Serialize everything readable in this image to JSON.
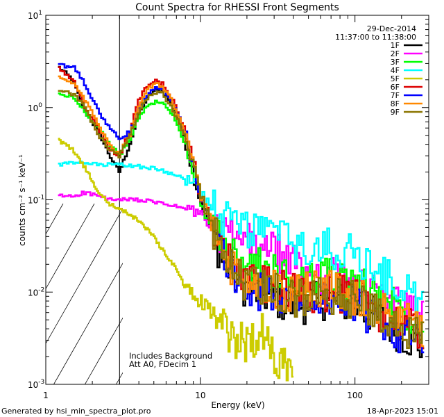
{
  "chart_data": {
    "type": "line",
    "title": "Count Spectra for RHESSI Front Segments",
    "xlabel": "Energy (keV)",
    "ylabel": "counts cm⁻² s⁻¹ keV⁻¹",
    "xscale": "log",
    "yscale": "log",
    "xlim": [
      1,
      300
    ],
    "ylim": [
      0.001,
      10
    ],
    "xticks": [
      {
        "value": 1,
        "label": "1"
      },
      {
        "value": 10,
        "label": "10"
      },
      {
        "value": 100,
        "label": "100"
      }
    ],
    "yticks": [
      {
        "value": 0.001,
        "base": "10",
        "exp": "-3"
      },
      {
        "value": 0.01,
        "base": "10",
        "exp": "-2"
      },
      {
        "value": 0.1,
        "base": "10",
        "exp": "-1"
      },
      {
        "value": 1,
        "base": "10",
        "exp": "0"
      },
      {
        "value": 10,
        "base": "10",
        "exp": "1"
      }
    ],
    "date": "29-Dec-2014",
    "time_range": "11:37:00 to 11:38:00",
    "annotations": [
      "Includes Background",
      "Att A0, FDecim 1"
    ],
    "hatched_region": [
      1,
      3
    ],
    "series": [
      {
        "name": "1F",
        "color": "#000000",
        "points": [
          [
            1.2,
            2.8
          ],
          [
            1.5,
            2.0
          ],
          [
            1.8,
            0.9
          ],
          [
            2.2,
            0.55
          ],
          [
            2.6,
            0.3
          ],
          [
            3.0,
            0.2
          ],
          [
            3.5,
            0.4
          ],
          [
            4.0,
            0.85
          ],
          [
            4.6,
            1.3
          ],
          [
            5.1,
            1.55
          ],
          [
            5.7,
            1.5
          ],
          [
            6.3,
            1.2
          ],
          [
            7.0,
            0.85
          ],
          [
            8.0,
            0.45
          ],
          [
            9.0,
            0.2
          ],
          [
            10.0,
            0.1
          ],
          [
            12.0,
            0.045
          ],
          [
            14.0,
            0.022
          ],
          [
            17.0,
            0.014
          ],
          [
            20.0,
            0.011
          ],
          [
            25.0,
            0.0095
          ],
          [
            30.0,
            0.0085
          ],
          [
            40.0,
            0.007
          ],
          [
            50.0,
            0.0075
          ],
          [
            70.0,
            0.0085
          ],
          [
            100.0,
            0.007
          ],
          [
            150.0,
            0.005
          ],
          [
            200.0,
            0.0035
          ],
          [
            280.0,
            0.0025
          ]
        ]
      },
      {
        "name": "2F",
        "color": "#ff00ff",
        "points": [
          [
            1.2,
            0.11
          ],
          [
            1.5,
            0.11
          ],
          [
            1.8,
            0.12
          ],
          [
            2.2,
            0.11
          ],
          [
            2.6,
            0.1
          ],
          [
            3.0,
            0.1
          ],
          [
            4.0,
            0.1
          ],
          [
            6.0,
            0.09
          ],
          [
            8.0,
            0.08
          ],
          [
            10.0,
            0.07
          ],
          [
            12.0,
            0.05
          ],
          [
            15.0,
            0.04
          ],
          [
            20.0,
            0.035
          ],
          [
            25.0,
            0.032
          ],
          [
            30.0,
            0.028
          ],
          [
            40.0,
            0.02
          ],
          [
            50.0,
            0.017
          ],
          [
            70.0,
            0.015
          ],
          [
            100.0,
            0.012
          ],
          [
            150.0,
            0.009
          ],
          [
            200.0,
            0.007
          ],
          [
            280.0,
            0.005
          ]
        ]
      },
      {
        "name": "3F",
        "color": "#00ff00",
        "points": [
          [
            1.2,
            1.4
          ],
          [
            1.5,
            1.3
          ],
          [
            1.8,
            0.9
          ],
          [
            2.2,
            0.6
          ],
          [
            2.6,
            0.4
          ],
          [
            3.0,
            0.3
          ],
          [
            3.5,
            0.45
          ],
          [
            4.0,
            0.8
          ],
          [
            4.6,
            1.05
          ],
          [
            5.1,
            1.15
          ],
          [
            5.7,
            1.1
          ],
          [
            6.3,
            0.95
          ],
          [
            7.0,
            0.7
          ],
          [
            8.0,
            0.4
          ],
          [
            9.0,
            0.2
          ],
          [
            10.0,
            0.1
          ],
          [
            12.0,
            0.05
          ],
          [
            14.0,
            0.028
          ],
          [
            17.0,
            0.022
          ],
          [
            20.0,
            0.02
          ],
          [
            25.0,
            0.018
          ],
          [
            30.0,
            0.016
          ],
          [
            40.0,
            0.013
          ],
          [
            50.0,
            0.014
          ],
          [
            70.0,
            0.015
          ],
          [
            100.0,
            0.012
          ],
          [
            150.0,
            0.009
          ],
          [
            200.0,
            0.0065
          ],
          [
            280.0,
            0.0045
          ]
        ]
      },
      {
        "name": "4F",
        "color": "#00ffff",
        "points": [
          [
            1.2,
            0.24
          ],
          [
            1.5,
            0.25
          ],
          [
            1.8,
            0.25
          ],
          [
            2.2,
            0.24
          ],
          [
            2.6,
            0.24
          ],
          [
            3.0,
            0.24
          ],
          [
            4.0,
            0.23
          ],
          [
            5.0,
            0.22
          ],
          [
            6.0,
            0.2
          ],
          [
            7.0,
            0.19
          ],
          [
            8.0,
            0.17
          ],
          [
            9.0,
            0.15
          ],
          [
            10.0,
            0.12
          ],
          [
            12.0,
            0.08
          ],
          [
            14.0,
            0.06
          ],
          [
            17.0,
            0.055
          ],
          [
            20.0,
            0.05
          ],
          [
            25.0,
            0.048
          ],
          [
            30.0,
            0.045
          ],
          [
            35.0,
            0.04
          ],
          [
            40.0,
            0.03
          ],
          [
            50.0,
            0.028
          ],
          [
            70.0,
            0.03
          ],
          [
            100.0,
            0.025
          ],
          [
            150.0,
            0.016
          ],
          [
            200.0,
            0.011
          ],
          [
            280.0,
            0.007
          ]
        ]
      },
      {
        "name": "5F",
        "color": "#cccc00",
        "points": [
          [
            1.2,
            0.45
          ],
          [
            1.5,
            0.35
          ],
          [
            1.8,
            0.22
          ],
          [
            2.2,
            0.12
          ],
          [
            2.6,
            0.09
          ],
          [
            3.0,
            0.08
          ],
          [
            4.0,
            0.06
          ],
          [
            5.0,
            0.04
          ],
          [
            6.0,
            0.025
          ],
          [
            7.0,
            0.018
          ],
          [
            8.0,
            0.011
          ],
          [
            9.0,
            0.009
          ],
          [
            10.0,
            0.008
          ],
          [
            12.0,
            0.006
          ],
          [
            14.0,
            0.004
          ],
          [
            17.0,
            0.003
          ],
          [
            20.0,
            0.0028
          ],
          [
            25.0,
            0.0038
          ],
          [
            30.0,
            0.002
          ],
          [
            35.0,
            0.0018
          ],
          [
            40.0,
            0.0015
          ]
        ]
      },
      {
        "name": "6F",
        "color": "#dd0000",
        "points": [
          [
            1.2,
            2.7
          ],
          [
            1.5,
            2.0
          ],
          [
            1.8,
            1.0
          ],
          [
            2.2,
            0.6
          ],
          [
            2.6,
            0.35
          ],
          [
            3.0,
            0.3
          ],
          [
            3.5,
            0.55
          ],
          [
            4.0,
            1.2
          ],
          [
            4.6,
            1.8
          ],
          [
            5.1,
            2.0
          ],
          [
            5.7,
            1.8
          ],
          [
            6.3,
            1.4
          ],
          [
            7.0,
            1.0
          ],
          [
            8.0,
            0.55
          ],
          [
            9.0,
            0.25
          ],
          [
            10.0,
            0.12
          ],
          [
            12.0,
            0.05
          ],
          [
            14.0,
            0.027
          ],
          [
            17.0,
            0.017
          ],
          [
            20.0,
            0.013
          ],
          [
            25.0,
            0.012
          ],
          [
            30.0,
            0.011
          ],
          [
            40.0,
            0.0095
          ],
          [
            50.0,
            0.01
          ],
          [
            70.0,
            0.01
          ],
          [
            100.0,
            0.0085
          ],
          [
            150.0,
            0.006
          ],
          [
            200.0,
            0.0045
          ],
          [
            280.0,
            0.0032
          ]
        ]
      },
      {
        "name": "7F",
        "color": "#0000ff",
        "points": [
          [
            1.2,
            2.85
          ],
          [
            1.5,
            2.8
          ],
          [
            1.8,
            1.8
          ],
          [
            2.2,
            0.9
          ],
          [
            2.6,
            0.6
          ],
          [
            3.0,
            0.45
          ],
          [
            3.5,
            0.55
          ],
          [
            4.0,
            0.95
          ],
          [
            4.6,
            1.4
          ],
          [
            5.1,
            1.6
          ],
          [
            5.7,
            1.6
          ],
          [
            6.3,
            1.35
          ],
          [
            7.0,
            0.95
          ],
          [
            8.0,
            0.5
          ],
          [
            9.0,
            0.25
          ],
          [
            10.0,
            0.12
          ],
          [
            12.0,
            0.05
          ],
          [
            14.0,
            0.024
          ],
          [
            17.0,
            0.015
          ],
          [
            20.0,
            0.011
          ],
          [
            25.0,
            0.01
          ],
          [
            30.0,
            0.009
          ],
          [
            40.0,
            0.008
          ],
          [
            50.0,
            0.008
          ],
          [
            70.0,
            0.0085
          ],
          [
            100.0,
            0.007
          ],
          [
            150.0,
            0.005
          ],
          [
            200.0,
            0.0035
          ],
          [
            280.0,
            0.0025
          ]
        ]
      },
      {
        "name": "8F",
        "color": "#ff8800",
        "points": [
          [
            1.2,
            2.1
          ],
          [
            1.5,
            1.9
          ],
          [
            1.8,
            1.2
          ],
          [
            2.2,
            0.65
          ],
          [
            2.6,
            0.38
          ],
          [
            3.0,
            0.32
          ],
          [
            3.5,
            0.5
          ],
          [
            4.0,
            1.05
          ],
          [
            4.6,
            1.6
          ],
          [
            5.1,
            1.8
          ],
          [
            5.7,
            1.7
          ],
          [
            6.3,
            1.35
          ],
          [
            7.0,
            0.95
          ],
          [
            8.0,
            0.5
          ],
          [
            9.0,
            0.25
          ],
          [
            10.0,
            0.12
          ],
          [
            12.0,
            0.05
          ],
          [
            14.0,
            0.025
          ],
          [
            17.0,
            0.016
          ],
          [
            20.0,
            0.013
          ],
          [
            25.0,
            0.012
          ],
          [
            30.0,
            0.011
          ],
          [
            40.0,
            0.01
          ],
          [
            50.0,
            0.011
          ],
          [
            70.0,
            0.011
          ],
          [
            100.0,
            0.009
          ],
          [
            150.0,
            0.007
          ],
          [
            200.0,
            0.005
          ],
          [
            280.0,
            0.0035
          ]
        ]
      },
      {
        "name": "9F",
        "color": "#8b7500",
        "points": [
          [
            1.2,
            1.6
          ],
          [
            1.5,
            1.4
          ],
          [
            1.8,
            1.0
          ],
          [
            2.2,
            0.5
          ],
          [
            2.6,
            0.35
          ],
          [
            3.0,
            0.3
          ],
          [
            3.5,
            0.5
          ],
          [
            4.0,
            0.9
          ],
          [
            4.6,
            1.3
          ],
          [
            5.1,
            1.45
          ],
          [
            5.7,
            1.4
          ],
          [
            6.3,
            1.1
          ],
          [
            7.0,
            0.8
          ],
          [
            8.0,
            0.45
          ],
          [
            9.0,
            0.22
          ],
          [
            10.0,
            0.11
          ],
          [
            12.0,
            0.05
          ],
          [
            14.0,
            0.025
          ],
          [
            17.0,
            0.016
          ],
          [
            20.0,
            0.012
          ],
          [
            25.0,
            0.011
          ],
          [
            30.0,
            0.01
          ],
          [
            40.0,
            0.0085
          ],
          [
            50.0,
            0.009
          ],
          [
            70.0,
            0.0095
          ],
          [
            100.0,
            0.008
          ],
          [
            150.0,
            0.006
          ],
          [
            200.0,
            0.0042
          ],
          [
            280.0,
            0.003
          ]
        ]
      }
    ]
  },
  "footer": {
    "generated": "Generated by hsi_min_spectra_plot.pro",
    "timestamp": "18-Apr-2023 15:01"
  }
}
